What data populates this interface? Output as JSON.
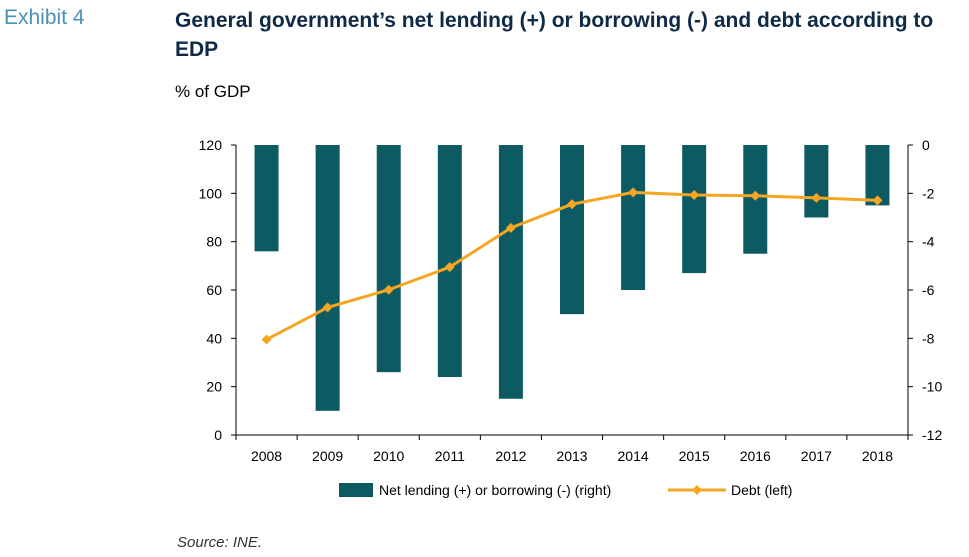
{
  "header": {
    "exhibit": "Exhibit 4",
    "title": "General government’s net lending (+) or borrowing (-) and debt according to EDP",
    "subtitle": "% of GDP"
  },
  "footer": {
    "source": "Source: INE."
  },
  "colors": {
    "bar": "#0e5a63",
    "line": "#f5a623",
    "title": "#0e2a47",
    "exhibit": "#4a90b8"
  },
  "chart_data": {
    "type": "bar+line",
    "categories": [
      "2008",
      "2009",
      "2010",
      "2011",
      "2012",
      "2013",
      "2014",
      "2015",
      "2016",
      "2017",
      "2018"
    ],
    "series": [
      {
        "name": "Net lending (+) or borrowing (-) (right)",
        "type": "bar",
        "axis": "right",
        "values": [
          -4.4,
          -11.0,
          -9.4,
          -9.6,
          -10.5,
          -7.0,
          -6.0,
          -5.3,
          -4.5,
          -3.0,
          -2.5
        ]
      },
      {
        "name": "Debt (left)",
        "type": "line",
        "axis": "left",
        "marker": "diamond",
        "values": [
          39.5,
          52.8,
          60.1,
          69.5,
          85.7,
          95.5,
          100.4,
          99.3,
          99.0,
          98.1,
          97.1
        ]
      }
    ],
    "y_left": {
      "min": 0,
      "max": 120,
      "ticks": [
        0,
        20,
        40,
        60,
        80,
        100,
        120
      ]
    },
    "y_right": {
      "min": -12,
      "max": 0,
      "ticks": [
        0,
        -2,
        -4,
        -6,
        -8,
        -10,
        -12
      ]
    },
    "legend": "bottom",
    "grid": false
  }
}
